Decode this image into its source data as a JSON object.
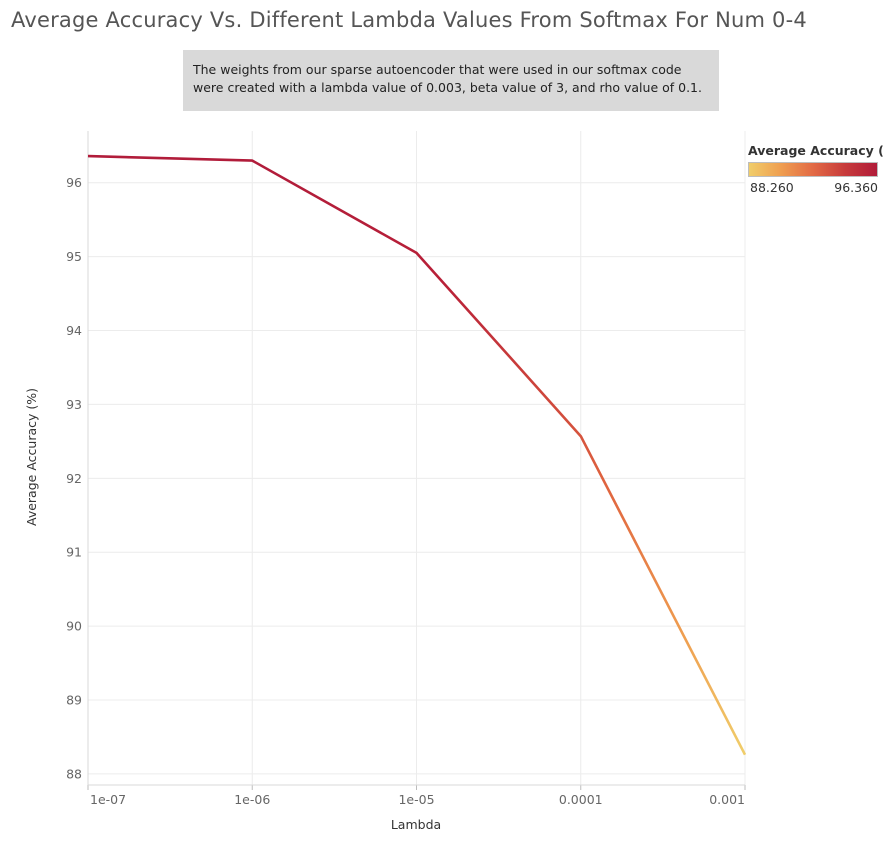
{
  "chart_data": {
    "type": "line",
    "title": "Average Accuracy Vs. Different Lambda Values From Softmax For Num 0-4",
    "annotation": "The weights from our sparse autoencoder that were used in our softmax code were created with a lambda value of 0.003, beta value of 3, and rho value of 0.1.",
    "xlabel": "Lambda",
    "ylabel": "Average Accuracy (%)",
    "x_scale": "log",
    "x": [
      1e-07,
      1e-06,
      1e-05,
      0.0001,
      0.001
    ],
    "x_tick_labels": [
      "1e-07",
      "1e-06",
      "1e-05",
      "0.0001",
      "0.001"
    ],
    "y_ticks": [
      88,
      89,
      90,
      91,
      92,
      93,
      94,
      95,
      96
    ],
    "ylim": [
      87.85,
      96.7
    ],
    "series": [
      {
        "name": "Average Accuracy (%)",
        "values": [
          96.36,
          96.3,
          95.05,
          92.57,
          88.26
        ]
      }
    ],
    "grid": true,
    "legend": {
      "title": "Average Accuracy (..",
      "min_label": "88.260",
      "max_label": "96.360",
      "placement": "top-right",
      "color_low": "#f0cd6a",
      "color_high": "#b11c3a"
    }
  }
}
